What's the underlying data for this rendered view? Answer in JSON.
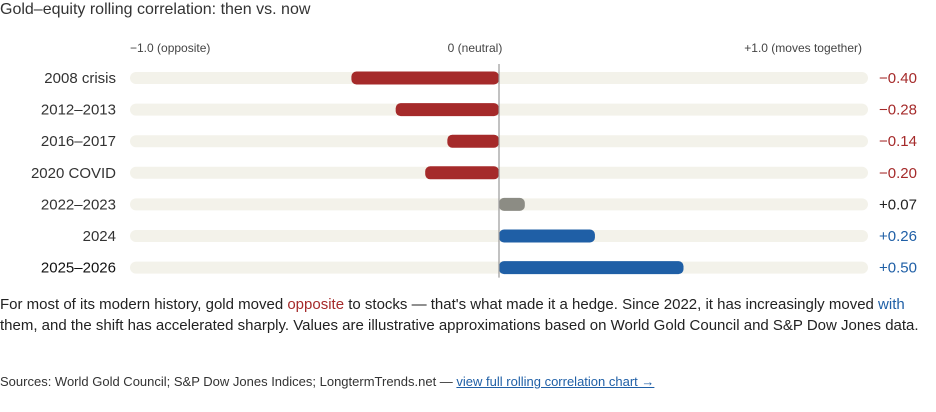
{
  "title": "Gold–equity rolling correlation: then vs. now",
  "colors": {
    "negative": "#a52a2a",
    "positive": "#1f5fa6",
    "neutral": "#8c8c84",
    "track": "#f3f2ea",
    "center_line": "#9a9a9a"
  },
  "chart_data": {
    "type": "bar",
    "orientation": "horizontal",
    "xlim": [
      -1.0,
      1.0
    ],
    "axis_labels": {
      "left": "−1.0 (opposite)",
      "center": "0 (neutral)",
      "right": "+1.0 (moves together)"
    },
    "categories": [
      "2008 crisis",
      "2012–2013",
      "2016–2017",
      "2020 COVID",
      "2022–2023",
      "2024",
      "2025–2026"
    ],
    "values": [
      -0.4,
      -0.28,
      -0.14,
      -0.2,
      0.07,
      0.26,
      0.5
    ],
    "value_labels": [
      "−0.40",
      "−0.28",
      "−0.14",
      "−0.20",
      "+0.07",
      "+0.26",
      "+0.50"
    ]
  },
  "paragraph": {
    "part1": "For most of its modern history, gold moved ",
    "opposite": "opposite",
    "part2": " to stocks — that's what made it a hedge. Since 2022, it has increasingly moved ",
    "with": "with",
    "part3": " them, and the shift has accelerated sharply. Values are illustrative approximations based on World Gold Council and S&P Dow Jones data."
  },
  "sources": {
    "text": "Sources: World Gold Council; S&P Dow Jones Indices; LongtermTrends.net — ",
    "link_label": "view full rolling correlation chart →"
  }
}
